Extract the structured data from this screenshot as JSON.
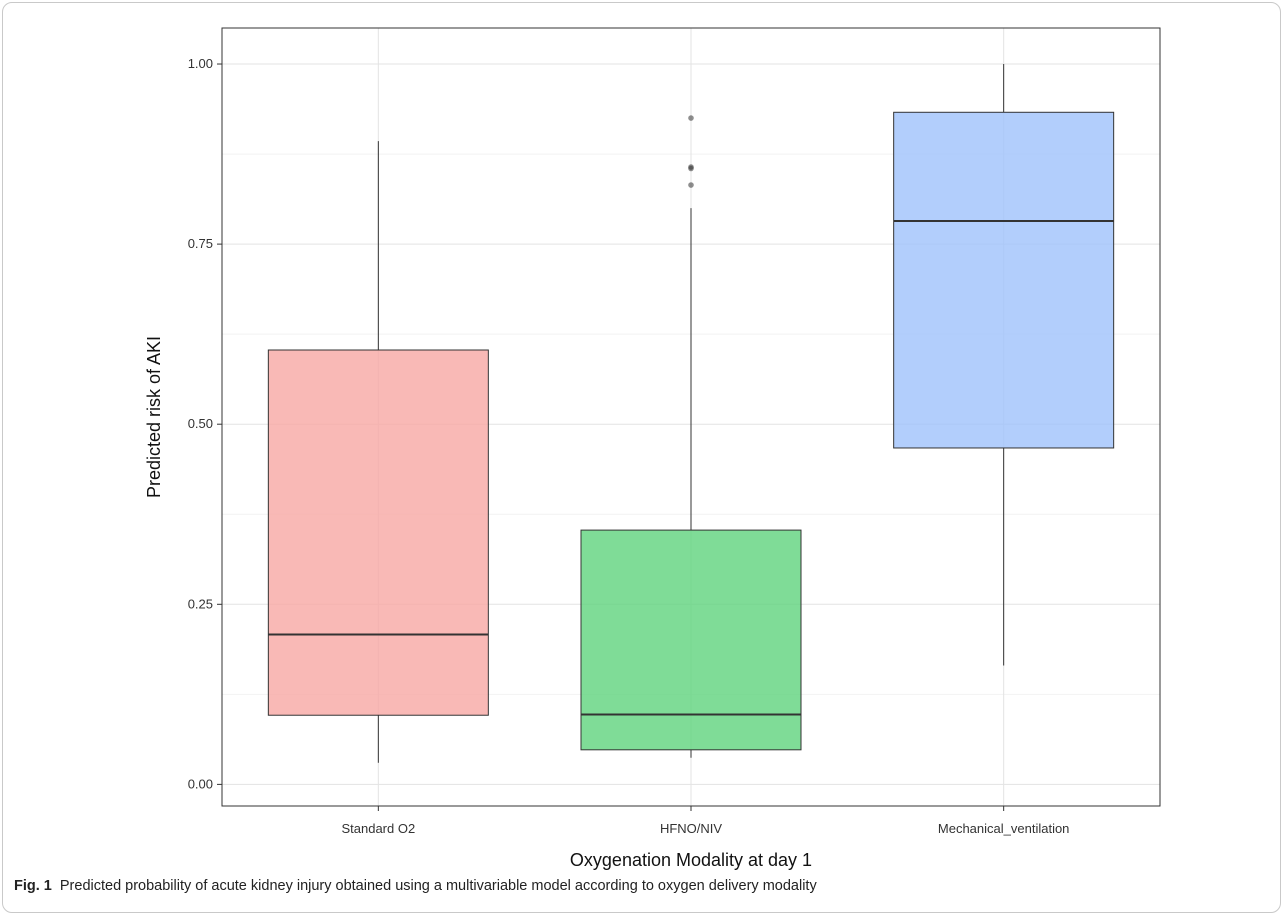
{
  "chart_data": {
    "type": "box",
    "xlabel": "Oxygenation Modality at day 1",
    "ylabel": "Predicted risk of AKI",
    "ylim": [
      -0.03,
      1.05
    ],
    "yticks": [
      0.0,
      0.25,
      0.5,
      0.75,
      1.0
    ],
    "ytick_labels": [
      "0.00",
      "0.25",
      "0.50",
      "0.75",
      "1.00"
    ],
    "grid": true,
    "categories": [
      "Standard O2",
      "HFNO/NIV",
      "Mechanical_ventilation"
    ],
    "boxes": [
      {
        "category": "Standard O2",
        "min": 0.03,
        "q1": 0.096,
        "median": 0.208,
        "q3": 0.603,
        "max": 0.893,
        "outliers": [],
        "color": "#F8A8A4"
      },
      {
        "category": "HFNO/NIV",
        "min": 0.037,
        "q1": 0.048,
        "median": 0.097,
        "q3": 0.353,
        "max": 0.8,
        "outliers": [
          0.925,
          0.857,
          0.855,
          0.832
        ],
        "color": "#5FD37D"
      },
      {
        "category": "Mechanical_ventilation",
        "min": 0.165,
        "q1": 0.467,
        "median": 0.782,
        "q3": 0.933,
        "max": 1.0,
        "outliers": [],
        "color": "#9FC2FB"
      }
    ]
  },
  "caption": {
    "label": "Fig. 1",
    "text": "Predicted probability of acute kidney injury obtained using a multivariable model according to oxygen delivery modality"
  }
}
